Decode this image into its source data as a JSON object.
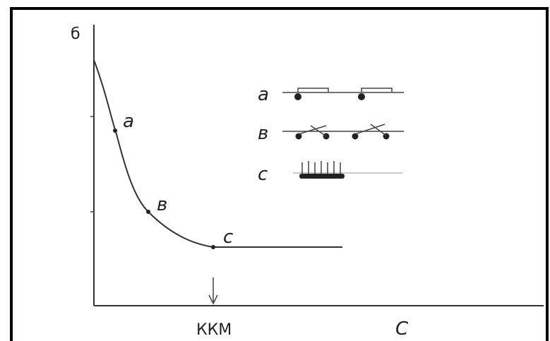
{
  "axes": {
    "y_label": "б",
    "x_label": "С",
    "marker_label": "ККМ"
  },
  "points": [
    {
      "label": "a"
    },
    {
      "label": "в"
    },
    {
      "label": "c"
    }
  ],
  "legend": [
    {
      "label": "a"
    },
    {
      "label": "в"
    },
    {
      "label": "c"
    }
  ]
}
